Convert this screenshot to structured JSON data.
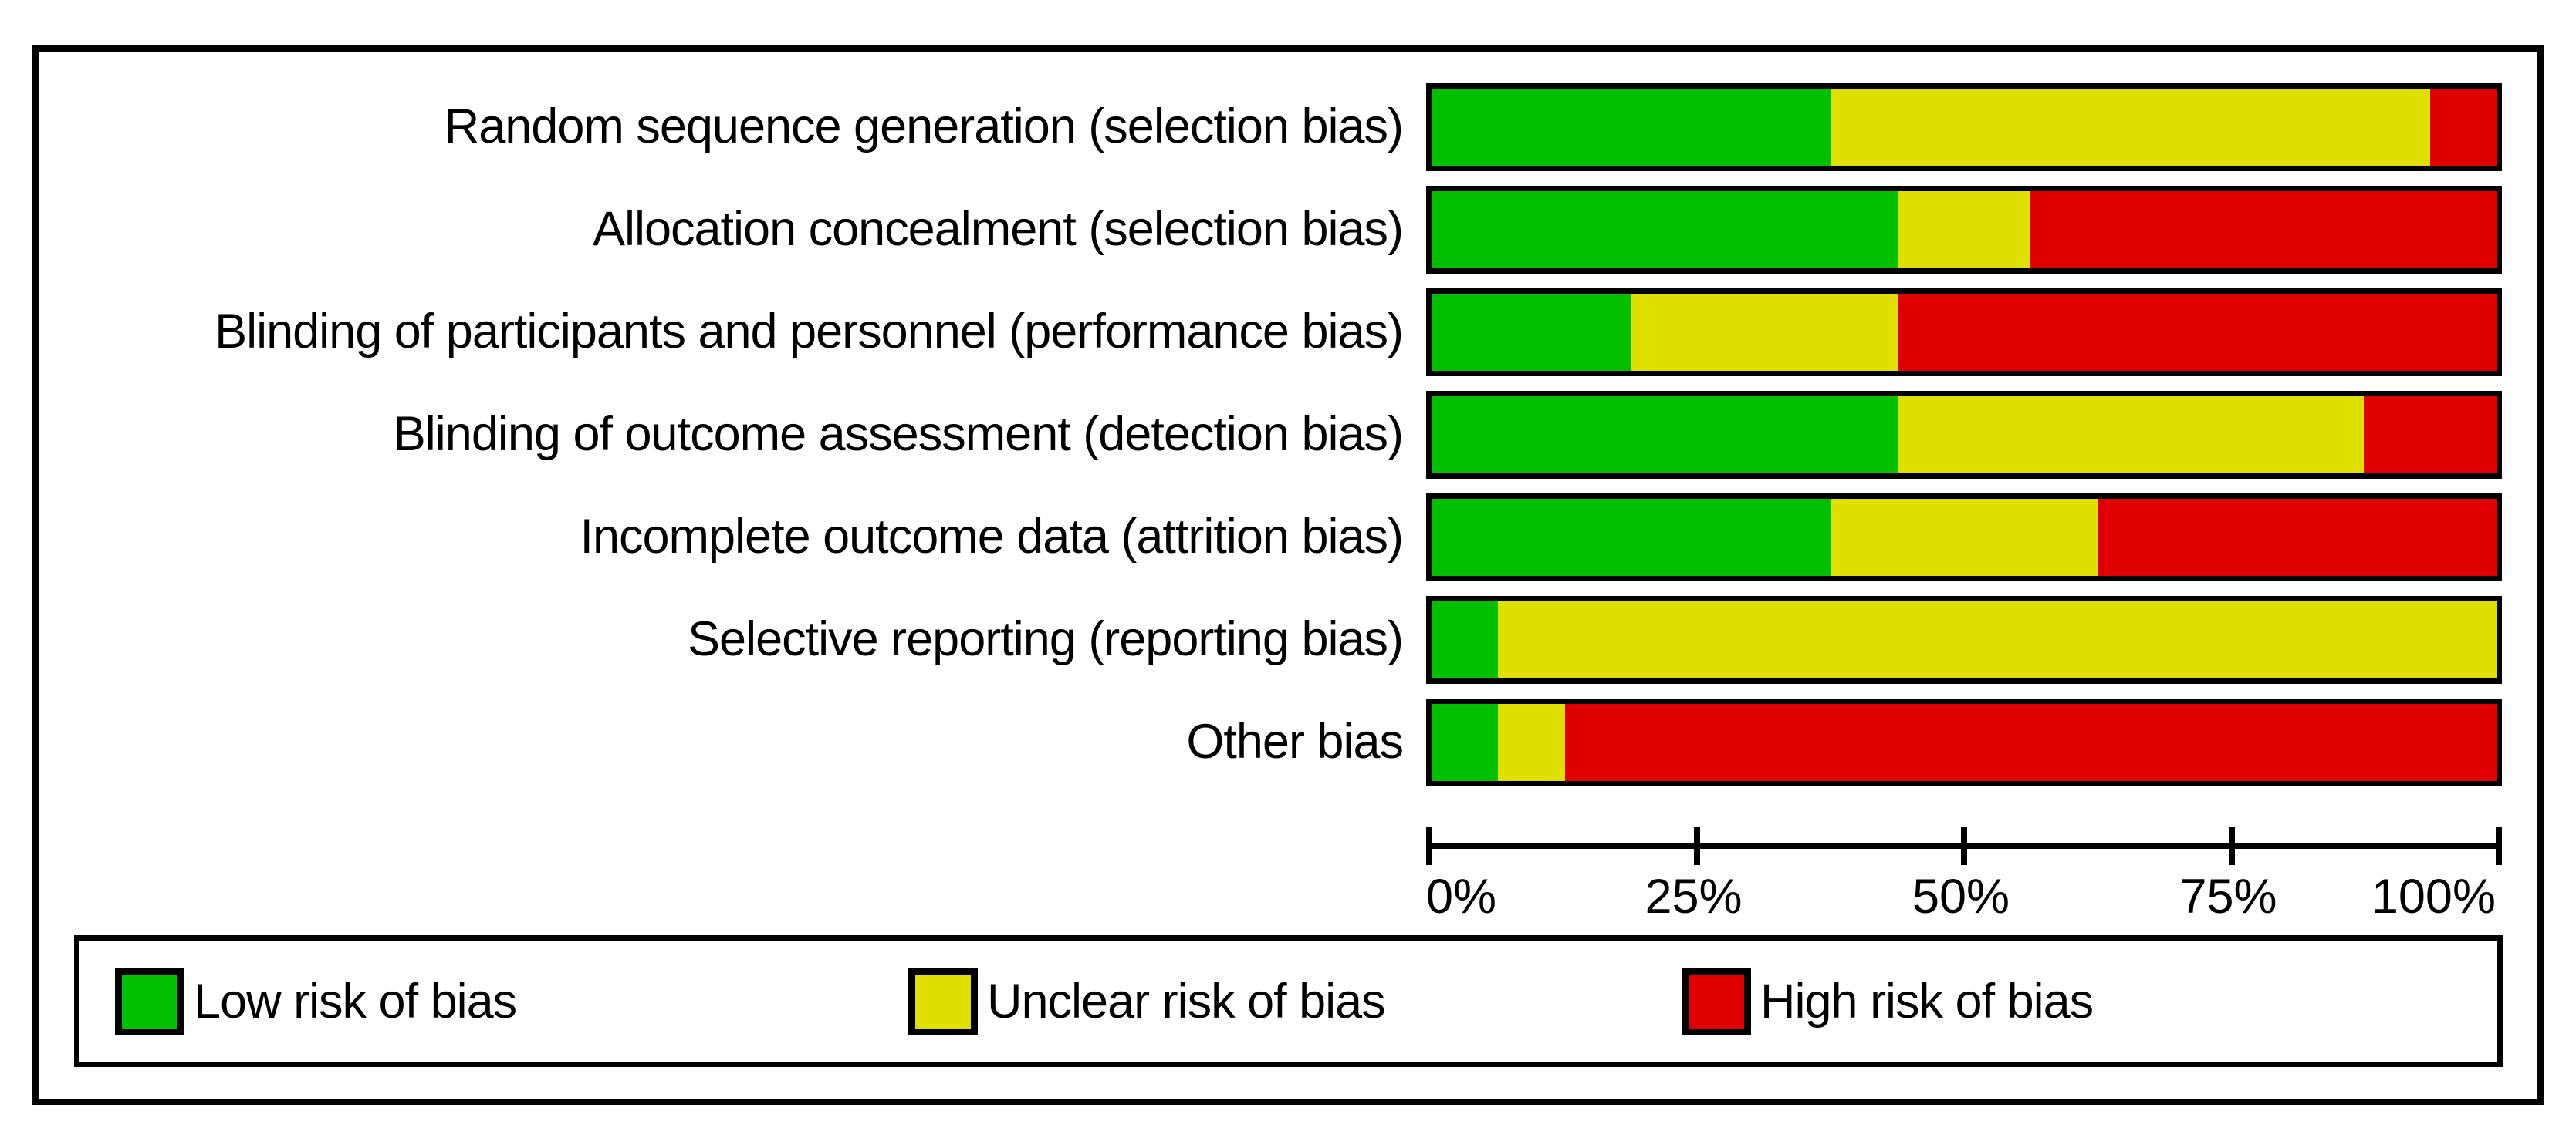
{
  "chart_data": {
    "type": "bar",
    "variant": "horizontal-stacked-percentage",
    "title": "",
    "categories": [
      "Random sequence generation (selection bias)",
      "Allocation concealment (selection bias)",
      "Blinding of participants and personnel (performance bias)",
      "Blinding of outcome assessment (detection bias)",
      "Incomplete outcome data (attrition bias)",
      "Selective reporting (reporting bias)",
      "Other bias"
    ],
    "series": [
      {
        "key": "low",
        "name": "Low risk of bias",
        "color": "#00c000",
        "values_pct": [
          37.5,
          43.75,
          18.75,
          43.75,
          37.5,
          6.25,
          6.25
        ]
      },
      {
        "key": "unclear",
        "name": "Unclear risk of bias",
        "color": "#e0e000",
        "values_pct": [
          56.25,
          12.5,
          25,
          43.75,
          25,
          93.75,
          6.25
        ]
      },
      {
        "key": "high",
        "name": "High risk of bias",
        "color": "#e00000",
        "values_pct": [
          6.25,
          43.75,
          56.25,
          12.5,
          37.5,
          0,
          87.5
        ]
      }
    ],
    "xlim": [
      0,
      100
    ],
    "x_ticks": [
      {
        "label": "0%",
        "pos": 0
      },
      {
        "label": "25%",
        "pos": 25
      },
      {
        "label": "50%",
        "pos": 50
      },
      {
        "label": "75%",
        "pos": 75
      },
      {
        "label": "100%",
        "pos": 100
      }
    ],
    "grid": false,
    "legend_position": "bottom"
  },
  "legend": {
    "items": [
      {
        "label": "Low risk of bias",
        "color": "#00c000"
      },
      {
        "label": "Unclear risk of bias",
        "color": "#e0e000"
      },
      {
        "label": "High risk of bias",
        "color": "#e00000"
      }
    ]
  }
}
